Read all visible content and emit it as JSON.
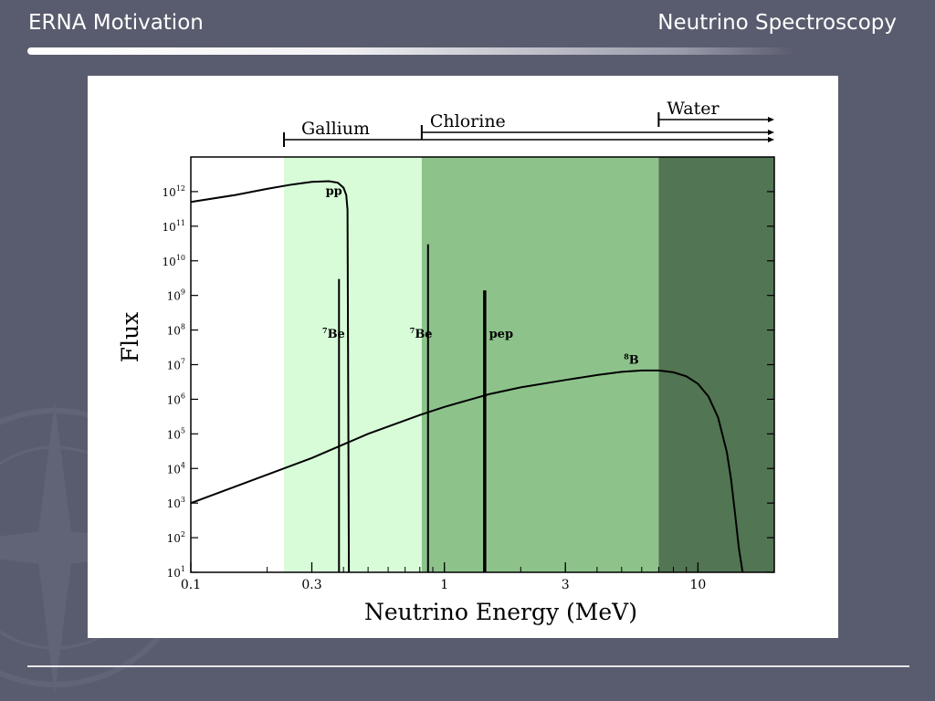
{
  "slide": {
    "title_left": "ERNA  Motivation",
    "title_right": "Neutrino Spectroscopy"
  },
  "colors": {
    "background": "#595c6e",
    "gallium_band": "#d8fcd8",
    "chlorine_band": "#8dc38b",
    "water_band": "#527553"
  },
  "chart_data": {
    "type": "line",
    "xlabel": "Neutrino Energy (MeV)",
    "ylabel": "Flux",
    "x_scale": "log",
    "y_scale": "log",
    "xlim": [
      0.1,
      20
    ],
    "ylim": [
      1,
      1000000000000.0
    ],
    "x_ticks": [
      {
        "value": 0.1,
        "label": "0.1"
      },
      {
        "value": 0.3,
        "label": "0.3"
      },
      {
        "value": 1,
        "label": "1"
      },
      {
        "value": 3,
        "label": "3"
      },
      {
        "value": 10,
        "label": "10"
      }
    ],
    "y_ticks": [
      {
        "exp": 0,
        "base": "10",
        "sup": "1"
      },
      {
        "exp": 1,
        "base": "10",
        "sup": "2"
      },
      {
        "exp": 2,
        "base": "10",
        "sup": "3"
      },
      {
        "exp": 3,
        "base": "10",
        "sup": "4"
      },
      {
        "exp": 4,
        "base": "10",
        "sup": "5"
      },
      {
        "exp": 5,
        "base": "10",
        "sup": "6"
      },
      {
        "exp": 6,
        "base": "10",
        "sup": "7"
      },
      {
        "exp": 7,
        "base": "10",
        "sup": "8"
      },
      {
        "exp": 8,
        "base": "10",
        "sup": "9"
      },
      {
        "exp": 9,
        "base": "10",
        "sup": "10"
      },
      {
        "exp": 10,
        "base": "10",
        "sup": "11"
      },
      {
        "exp": 11,
        "base": "10",
        "sup": "12"
      }
    ],
    "thresholds": [
      {
        "label": "Gallium",
        "energy": 0.233,
        "color": "#d8fcd8"
      },
      {
        "label": "Chlorine",
        "energy": 0.814,
        "color": "#8dc38b"
      },
      {
        "label": "Water",
        "energy": 7.0,
        "color": "#527553"
      }
    ],
    "series": [
      {
        "name": "pp",
        "kind": "continuum",
        "x": [
          0.1,
          0.15,
          0.2,
          0.25,
          0.3,
          0.35,
          0.38,
          0.4,
          0.41,
          0.415,
          0.42
        ],
        "y": [
          50000000000.0,
          80000000000.0,
          120000000000.0,
          160000000000.0,
          190000000000.0,
          200000000000.0,
          180000000000.0,
          130000000000.0,
          80000000000.0,
          30000000000.0,
          1
        ]
      },
      {
        "name": "8B",
        "kind": "continuum",
        "x": [
          0.1,
          0.3,
          0.5,
          0.8,
          1,
          1.5,
          2,
          3,
          4,
          5,
          6,
          7,
          8,
          9,
          10,
          11,
          12,
          13,
          13.5,
          14,
          14.5,
          15
        ],
        "y": [
          100.0,
          2000.0,
          10000.0,
          35000.0,
          60000.0,
          140000.0,
          220000.0,
          360000.0,
          500000.0,
          620000.0,
          680000.0,
          680000.0,
          600000.0,
          460000.0,
          280000.0,
          120000.0,
          30000.0,
          3000.0,
          500,
          50,
          5,
          1
        ]
      },
      {
        "name": "7Be",
        "kind": "line",
        "energy": 0.384,
        "flux": 300000000.0
      },
      {
        "name": "7Be",
        "kind": "line",
        "energy": 0.862,
        "flux": 3000000000.0
      },
      {
        "name": "pep",
        "kind": "line",
        "energy": 1.442,
        "flux": 140000000.0
      }
    ],
    "annotations": [
      {
        "text": "pp",
        "x": 0.34,
        "y": 80000000000.0
      },
      {
        "text": "7Be",
        "x": 0.33,
        "y": 6000000.0
      },
      {
        "text": "7Be",
        "x": 0.73,
        "y": 6000000.0
      },
      {
        "text": "pep",
        "x": 1.5,
        "y": 6000000.0
      },
      {
        "text": "8B",
        "x": 5.1,
        "y": 1050000.0
      }
    ]
  }
}
